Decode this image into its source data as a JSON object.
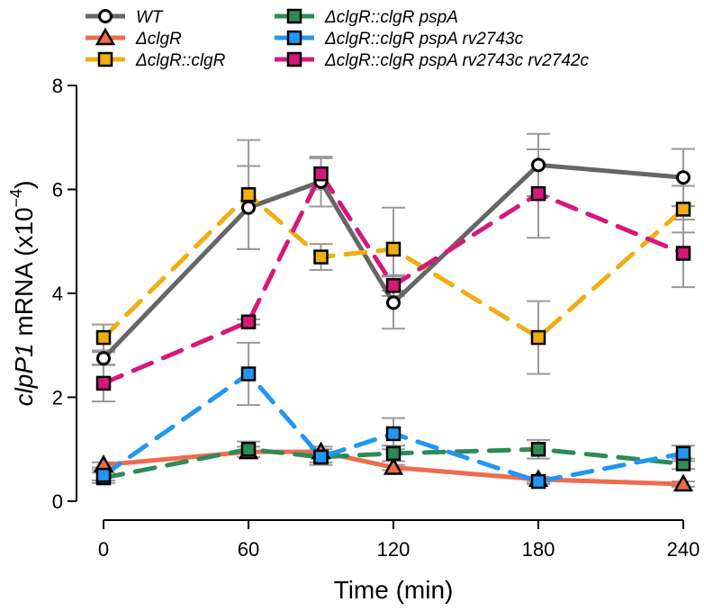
{
  "chart_data": {
    "type": "line",
    "title": "",
    "xlabel": "Time (min)",
    "ylabel_italic": "clpP1",
    "ylabel_rest": " mRNA (x10",
    "ylabel_exp": "−4",
    "ylabel_close": ")",
    "xlim": [
      0,
      240
    ],
    "ylim": [
      0,
      8
    ],
    "xticks": [
      0,
      60,
      120,
      180,
      240
    ],
    "yticks": [
      0,
      2,
      4,
      6,
      8
    ],
    "x": [
      0,
      60,
      90,
      120,
      180,
      240
    ],
    "legend_position": "top",
    "series": [
      {
        "name": "WT",
        "color": "#666666",
        "marker": "circle",
        "dashed": false,
        "values": [
          2.75,
          5.65,
          6.15,
          3.82,
          6.47,
          6.23
        ],
        "err": [
          0.12,
          0.8,
          0.48,
          0.5,
          0.6,
          0.55
        ]
      },
      {
        "name": "ΔclgR",
        "color": "#EE6B4E",
        "marker": "triangle",
        "dashed": false,
        "values": [
          0.7,
          0.95,
          0.95,
          0.65,
          0.42,
          0.33
        ],
        "err": [
          0.05,
          0.1,
          0.1,
          0.05,
          0.05,
          0.05
        ]
      },
      {
        "name": "ΔclgR::clgR",
        "color": "#F0AE14",
        "marker": "square",
        "dashed": true,
        "values": [
          3.15,
          5.9,
          4.7,
          4.85,
          3.15,
          5.62
        ],
        "err": [
          0.25,
          1.05,
          0.25,
          0.8,
          0.7,
          0.45
        ]
      },
      {
        "name": "ΔclgR::clgR pspA",
        "color": "#2E8B57",
        "marker": "square",
        "dashed": true,
        "values": [
          0.45,
          1.0,
          0.85,
          0.92,
          1.0,
          0.72
        ],
        "err": [
          0.1,
          0.15,
          0.1,
          0.15,
          0.18,
          0.1
        ]
      },
      {
        "name": "ΔclgR::clgR pspA rv2743c",
        "color": "#2196F3",
        "marker": "square",
        "dashed": true,
        "values": [
          0.5,
          2.45,
          0.85,
          1.3,
          0.38,
          0.92
        ],
        "err": [
          0.1,
          0.6,
          0.15,
          0.3,
          0.05,
          0.15
        ]
      },
      {
        "name": "ΔclgR::clgR pspA rv2743c rv2742c",
        "color": "#D6187A",
        "marker": "square",
        "dashed": true,
        "values": [
          2.27,
          3.45,
          6.3,
          4.15,
          5.92,
          4.77
        ],
        "err": [
          0.35,
          0.05,
          0.3,
          0.2,
          0.85,
          0.65
        ]
      }
    ]
  }
}
